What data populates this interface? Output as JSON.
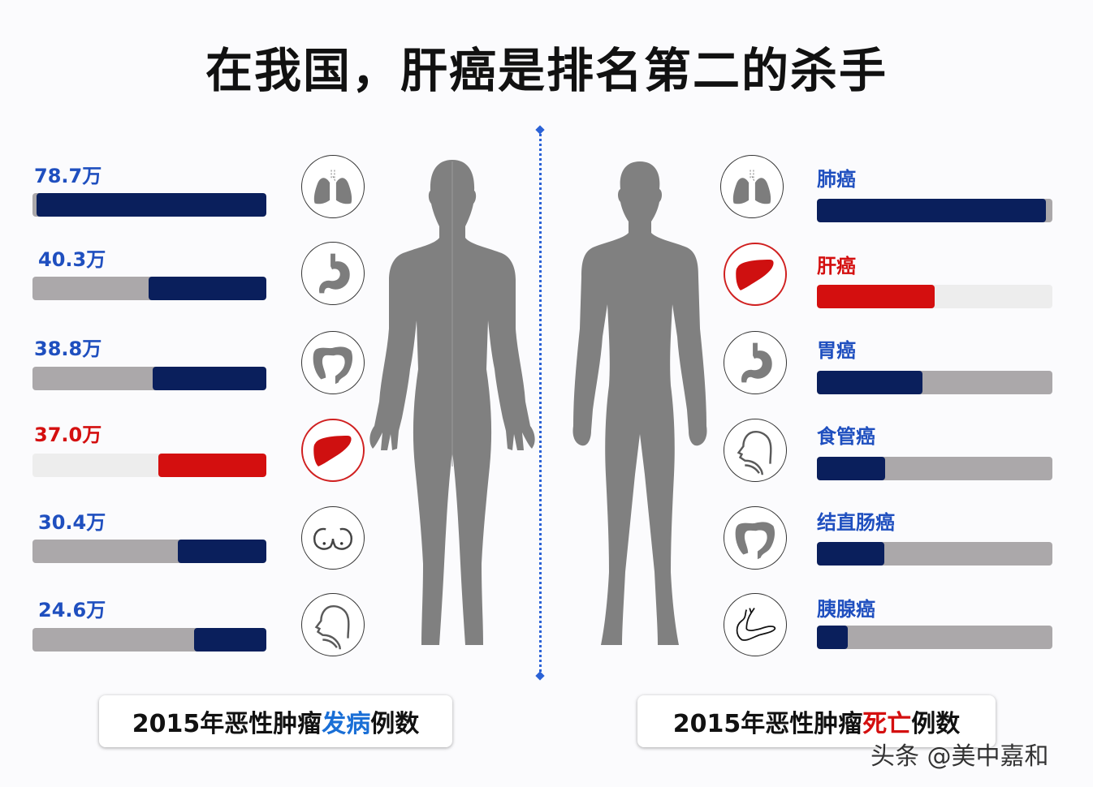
{
  "title": "在我国，肝癌是排名第二的杀手",
  "colors": {
    "navy": "#0a1f5c",
    "track_gray": "#aba8aa",
    "highlight_red": "#d40f0f",
    "highlight_track": "#ededed",
    "label_blue": "#1f4fbf",
    "accent_blue": "#1a6fd6",
    "divider_blue": "#2b62d6",
    "figure_gray": "#808080"
  },
  "left_panel": {
    "caption_prefix": "2015年恶性肿瘤",
    "caption_highlight": "发病",
    "caption_suffix": "例数",
    "rows": [
      {
        "name": "肺癌",
        "value_label": "78.7万",
        "value": 78.7,
        "icon": "lungs-icon",
        "highlight": false
      },
      {
        "name": "胃癌",
        "value_label": "40.3万",
        "value": 40.3,
        "icon": "stomach-icon",
        "highlight": false
      },
      {
        "name": "结直肠癌",
        "value_label": "38.8万",
        "value": 38.8,
        "icon": "colon-icon",
        "highlight": false
      },
      {
        "name": "肝癌",
        "value_label": "37.0万",
        "value": 37.0,
        "icon": "liver-icon",
        "highlight": true
      },
      {
        "name": "乳腺癌",
        "value_label": "30.4万",
        "value": 30.4,
        "icon": "breast-icon",
        "highlight": false
      },
      {
        "name": "食管癌",
        "value_label": "24.6万",
        "value": 24.6,
        "icon": "esophagus-icon",
        "highlight": false
      }
    ]
  },
  "right_panel": {
    "caption_prefix": "2015年恶性肿瘤",
    "caption_highlight": "死亡",
    "caption_suffix": "例数",
    "rows": [
      {
        "name": "肺癌",
        "value_label": "63.1万",
        "value": 63.1,
        "icon": "lungs-icon",
        "highlight": false
      },
      {
        "name": "肝癌",
        "value_label": "32.6万",
        "value": 32.6,
        "icon": "liver-icon",
        "highlight": true
      },
      {
        "name": "胃癌",
        "value_label": "29.1万",
        "value": 29.1,
        "icon": "stomach-icon",
        "highlight": false
      },
      {
        "name": "食管癌",
        "value_label": "18.8万",
        "value": 18.8,
        "icon": "esophagus-icon",
        "highlight": false
      },
      {
        "name": "结直肠癌",
        "value_label": "18.7万",
        "value": 18.7,
        "icon": "colon-icon",
        "highlight": false
      },
      {
        "name": "胰腺癌",
        "value_label": "8.5万",
        "value": 8.5,
        "icon": "pancreas-icon",
        "highlight": false
      }
    ]
  },
  "watermark": "头条 @美中嘉和",
  "chart_data": [
    {
      "type": "bar",
      "title": "2015年恶性肿瘤发病例数",
      "categories": [
        "肺癌",
        "胃癌",
        "结直肠癌",
        "肝癌",
        "乳腺癌",
        "食管癌"
      ],
      "values": [
        78.7,
        40.3,
        38.8,
        37.0,
        30.4,
        24.6
      ],
      "unit": "万",
      "orientation": "horizontal",
      "highlight": "肝癌"
    },
    {
      "type": "bar",
      "title": "2015年恶性肿瘤死亡例数",
      "categories": [
        "肺癌",
        "肝癌",
        "胃癌",
        "食管癌",
        "结直肠癌",
        "胰腺癌"
      ],
      "values": [
        63.1,
        32.6,
        29.1,
        18.8,
        18.7,
        8.5
      ],
      "unit": "万",
      "orientation": "horizontal",
      "highlight": "肝癌"
    }
  ]
}
